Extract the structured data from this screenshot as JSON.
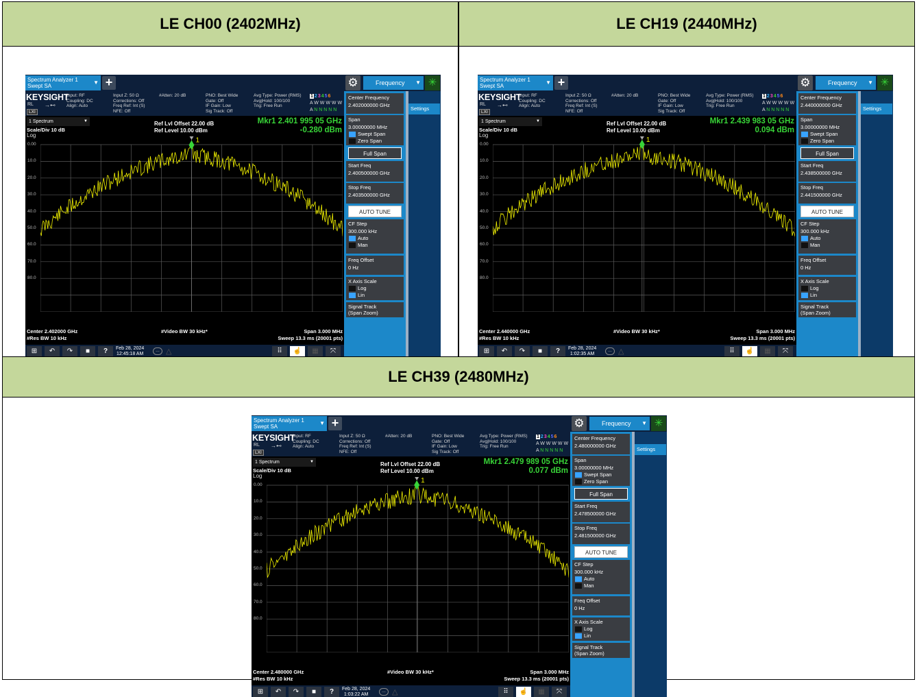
{
  "cells": [
    {
      "title": "LE CH00 (2402MHz)",
      "sa": {
        "tab_line1": "Spectrum Analyzer 1",
        "tab_line2": "Swept SA",
        "plus": "+",
        "freq_menu": "Frequency",
        "brand": "KEYSIGHT",
        "rl": "RL",
        "lxi": "LXI",
        "input": "Input: RF",
        "coupling": "Coupling: DC",
        "align": "Align: Auto",
        "inputz": "Input Z: 50 Ω",
        "corrections": "Corrections: Off",
        "freqref": "Freq Ref: Int (S)",
        "nfe": "NFE: Off",
        "atten": "#Atten: 20 dB",
        "pno": "PNO: Best Wide",
        "gate": "Gate: Off",
        "ifgain": "IF Gain: Low",
        "sigtrack": "Sig Track: Off",
        "avgtype": "Avg Type: Power (RMS)",
        "avghold": "Avg|Hold: 100/100",
        "trig": "Trig: Free Run",
        "trace_nums": [
          "1",
          "2",
          "3",
          "4",
          "5",
          "6"
        ],
        "trace_w": "W W W W W",
        "trace_n": "N N N N N",
        "trace_a1": "A",
        "trace_a2": "A",
        "spectrum_sel": "1 Spectrum",
        "scale": "Scale/Div 10 dB",
        "log": "Log",
        "ref_offset": "Ref Lvl Offset 22.00 dB",
        "ref_level": "Ref Level 10.00 dBm",
        "mkr_freq": "Mkr1  2.401 995 05 GHz",
        "mkr_amp": "-0.280 dBm",
        "mkr_label": "1",
        "y_ticks": [
          "0.00",
          "10.0",
          "20.0",
          "30.0",
          "40.0",
          "50.0",
          "60.0",
          "70.0",
          "80.0"
        ],
        "center": "Center 2.402000 GHz",
        "res_bw": "#Res BW 10 kHz",
        "video_bw": "#Video BW 30 kHz*",
        "span_lbl": "Span 3.000 MHz",
        "sweep": "Sweep 13.3 ms (20001 pts)",
        "date": "Feb 28, 2024",
        "time": "12:45:18 AM",
        "center_freq_lbl": "Center Frequency",
        "center_freq_val": "2.402000000 GHz",
        "span_btn": "Span",
        "span_val": "3.00000000 MHz",
        "swept": "Swept Span",
        "zero": "Zero Span",
        "full_span": "Full Span",
        "start_lbl": "Start Freq",
        "start_val": "2.400500000 GHz",
        "stop_lbl": "Stop Freq",
        "stop_val": "2.403500000 GHz",
        "auto_tune": "AUTO TUNE",
        "cfstep": "CF Step",
        "cfstep_val": "300.000 kHz",
        "auto": "Auto",
        "man": "Man",
        "freqoff": "Freq Offset",
        "freqoff_val": "0 Hz",
        "xaxis": "X Axis Scale",
        "log_opt": "Log",
        "lin_opt": "Lin",
        "sigtrack_btn": "Signal Track",
        "sigtrack_sub": "(Span Zoom)",
        "settings": "Settings"
      },
      "marker_x": 0.5,
      "marker_y_db": -0.28,
      "trace_seed": 11,
      "trace_offset": 0
    },
    {
      "title": "LE CH19 (2440MHz)",
      "sa": {
        "tab_line1": "Spectrum Analyzer 1",
        "tab_line2": "Swept SA",
        "plus": "+",
        "freq_menu": "Frequency",
        "brand": "KEYSIGHT",
        "rl": "RL",
        "lxi": "LXI",
        "input": "Input: RF",
        "coupling": "Coupling: DC",
        "align": "Align: Auto",
        "inputz": "Input Z: 50 Ω",
        "corrections": "Corrections: Off",
        "freqref": "Freq Ref: Int (S)",
        "nfe": "NFE: Off",
        "atten": "#Atten: 20 dB",
        "pno": "PNO: Best Wide",
        "gate": "Gate: Off",
        "ifgain": "IF Gain: Low",
        "sigtrack": "Sig Track: Off",
        "avgtype": "Avg Type: Power (RMS)",
        "avghold": "Avg|Hold: 100/100",
        "trig": "Trig: Free Run",
        "trace_nums": [
          "1",
          "2",
          "3",
          "4",
          "5",
          "6"
        ],
        "trace_w": "W W W W W",
        "trace_n": "N N N N N",
        "trace_a1": "A",
        "trace_a2": "A",
        "spectrum_sel": "1 Spectrum",
        "scale": "Scale/Div 10 dB",
        "log": "Log",
        "ref_offset": "Ref Lvl Offset 22.00 dB",
        "ref_level": "Ref Level 10.00 dBm",
        "mkr_freq": "Mkr1  2.439 983 05 GHz",
        "mkr_amp": "0.094 dBm",
        "mkr_label": "1",
        "y_ticks": [
          "0.00",
          "10.0",
          "20.0",
          "30.0",
          "40.0",
          "50.0",
          "60.0",
          "70.0",
          "80.0"
        ],
        "center": "Center 2.440000 GHz",
        "res_bw": "#Res BW 10 kHz",
        "video_bw": "#Video BW 30 kHz*",
        "span_lbl": "Span 3.000 MHz",
        "sweep": "Sweep 13.3 ms (20001 pts)",
        "date": "Feb 28, 2024",
        "time": "1:02:35 AM",
        "center_freq_lbl": "Center Frequency",
        "center_freq_val": "2.440000000 GHz",
        "span_btn": "Span",
        "span_val": "3.00000000 MHz",
        "swept": "Swept Span",
        "zero": "Zero Span",
        "full_span": "Full Span",
        "start_lbl": "Start Freq",
        "start_val": "2.438500000 GHz",
        "stop_lbl": "Stop Freq",
        "stop_val": "2.441500000 GHz",
        "auto_tune": "AUTO TUNE",
        "cfstep": "CF Step",
        "cfstep_val": "300.000 kHz",
        "auto": "Auto",
        "man": "Man",
        "freqoff": "Freq Offset",
        "freqoff_val": "0 Hz",
        "xaxis": "X Axis Scale",
        "log_opt": "Log",
        "lin_opt": "Lin",
        "sigtrack_btn": "Signal Track",
        "sigtrack_sub": "(Span Zoom)",
        "settings": "Settings"
      },
      "marker_x": 0.494,
      "marker_y_db": 0.094,
      "trace_seed": 29,
      "trace_offset": 0
    },
    {
      "title": "LE CH39 (2480MHz)",
      "sa": {
        "tab_line1": "Spectrum Analyzer 1",
        "tab_line2": "Swept SA",
        "plus": "+",
        "freq_menu": "Frequency",
        "brand": "KEYSIGHT",
        "rl": "RL",
        "lxi": "LXI",
        "input": "Input: RF",
        "coupling": "Coupling: DC",
        "align": "Align: Auto",
        "inputz": "Input Z: 50 Ω",
        "corrections": "Corrections: Off",
        "freqref": "Freq Ref: Int (S)",
        "nfe": "NFE: Off",
        "atten": "#Atten: 20 dB",
        "pno": "PNO: Best Wide",
        "gate": "Gate: Off",
        "ifgain": "IF Gain: Low",
        "sigtrack": "Sig Track: Off",
        "avgtype": "Avg Type: Power (RMS)",
        "avghold": "Avg|Hold: 100/100",
        "trig": "Trig: Free Run",
        "trace_nums": [
          "1",
          "2",
          "3",
          "4",
          "5",
          "6"
        ],
        "trace_w": "W W W W W",
        "trace_n": "N N N N N",
        "trace_a1": "A",
        "trace_a2": "A",
        "spectrum_sel": "1 Spectrum",
        "scale": "Scale/Div 10 dB",
        "log": "Log",
        "ref_offset": "Ref Lvl Offset 22.00 dB",
        "ref_level": "Ref Level 10.00 dBm",
        "mkr_freq": "Mkr1  2.479 989 05 GHz",
        "mkr_amp": "0.077 dBm",
        "mkr_label": "1",
        "y_ticks": [
          "0.00",
          "10.0",
          "20.0",
          "30.0",
          "40.0",
          "50.0",
          "60.0",
          "70.0",
          "80.0"
        ],
        "center": "Center 2.480000 GHz",
        "res_bw": "#Res BW 10 kHz",
        "video_bw": "#Video BW 30 kHz*",
        "span_lbl": "Span 3.000 MHz",
        "sweep": "Sweep 13.3 ms (20001 pts)",
        "date": "Feb 28, 2024",
        "time": "1:03:22 AM",
        "center_freq_lbl": "Center Frequency",
        "center_freq_val": "2.480000000 GHz",
        "span_btn": "Span",
        "span_val": "3.00000000 MHz",
        "swept": "Swept Span",
        "zero": "Zero Span",
        "full_span": "Full Span",
        "start_lbl": "Start Freq",
        "start_val": "2.478500000 GHz",
        "stop_lbl": "Stop Freq",
        "stop_val": "2.481500000 GHz",
        "auto_tune": "AUTO TUNE",
        "cfstep": "CF Step",
        "cfstep_val": "300.000 kHz",
        "auto": "Auto",
        "man": "Man",
        "freqoff": "Freq Offset",
        "freqoff_val": "0 Hz",
        "xaxis": "X Axis Scale",
        "log_opt": "Log",
        "lin_opt": "Lin",
        "sigtrack_btn": "Signal Track",
        "sigtrack_sub": "(Span Zoom)",
        "settings": "Settings"
      },
      "marker_x": 0.497,
      "marker_y_db": 0.077,
      "trace_seed": 47,
      "trace_offset": 0
    }
  ],
  "colors": {
    "header_bg": "#c4d79b",
    "trace": "#f2f200",
    "marker": "#38d438",
    "panel_blue": "#1c88c9"
  }
}
